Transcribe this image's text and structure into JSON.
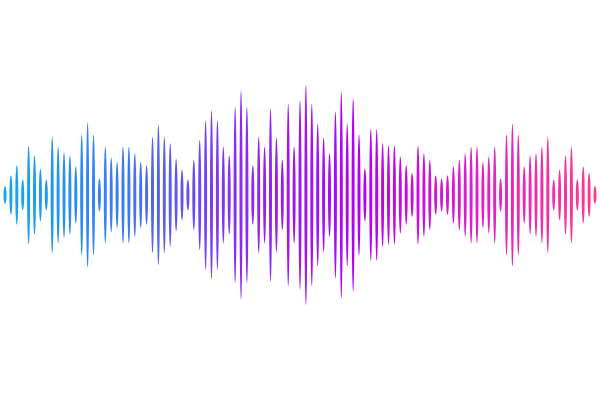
{
  "waveform": {
    "amplitude_scale": "relative, 0-100",
    "amplitudes": [
      8,
      18,
      27,
      14,
      45,
      36,
      24,
      14,
      53,
      44,
      39,
      36,
      26,
      55,
      66,
      55,
      15,
      44,
      34,
      30,
      44,
      44,
      38,
      30,
      27,
      53,
      64,
      53,
      47,
      33,
      23,
      14,
      32,
      50,
      68,
      77,
      68,
      44,
      36,
      80,
      95,
      80,
      27,
      53,
      44,
      79,
      52,
      32,
      83,
      44,
      86,
      100,
      83,
      65,
      52,
      38,
      76,
      94,
      65,
      88,
      55,
      24,
      60,
      60,
      47,
      45,
      45,
      35,
      27,
      20,
      45,
      38,
      32,
      18,
      15,
      18,
      26,
      32,
      38,
      44,
      44,
      30,
      35,
      44,
      15,
      55,
      65,
      55,
      26,
      36,
      38,
      44,
      53,
      14,
      23,
      36,
      44,
      14,
      26,
      20,
      8
    ],
    "gradient_colors": [
      "#12a8f0",
      "#3a7cf0",
      "#8a2cf0",
      "#b400f0",
      "#e020c8",
      "#ff3a8c"
    ]
  }
}
